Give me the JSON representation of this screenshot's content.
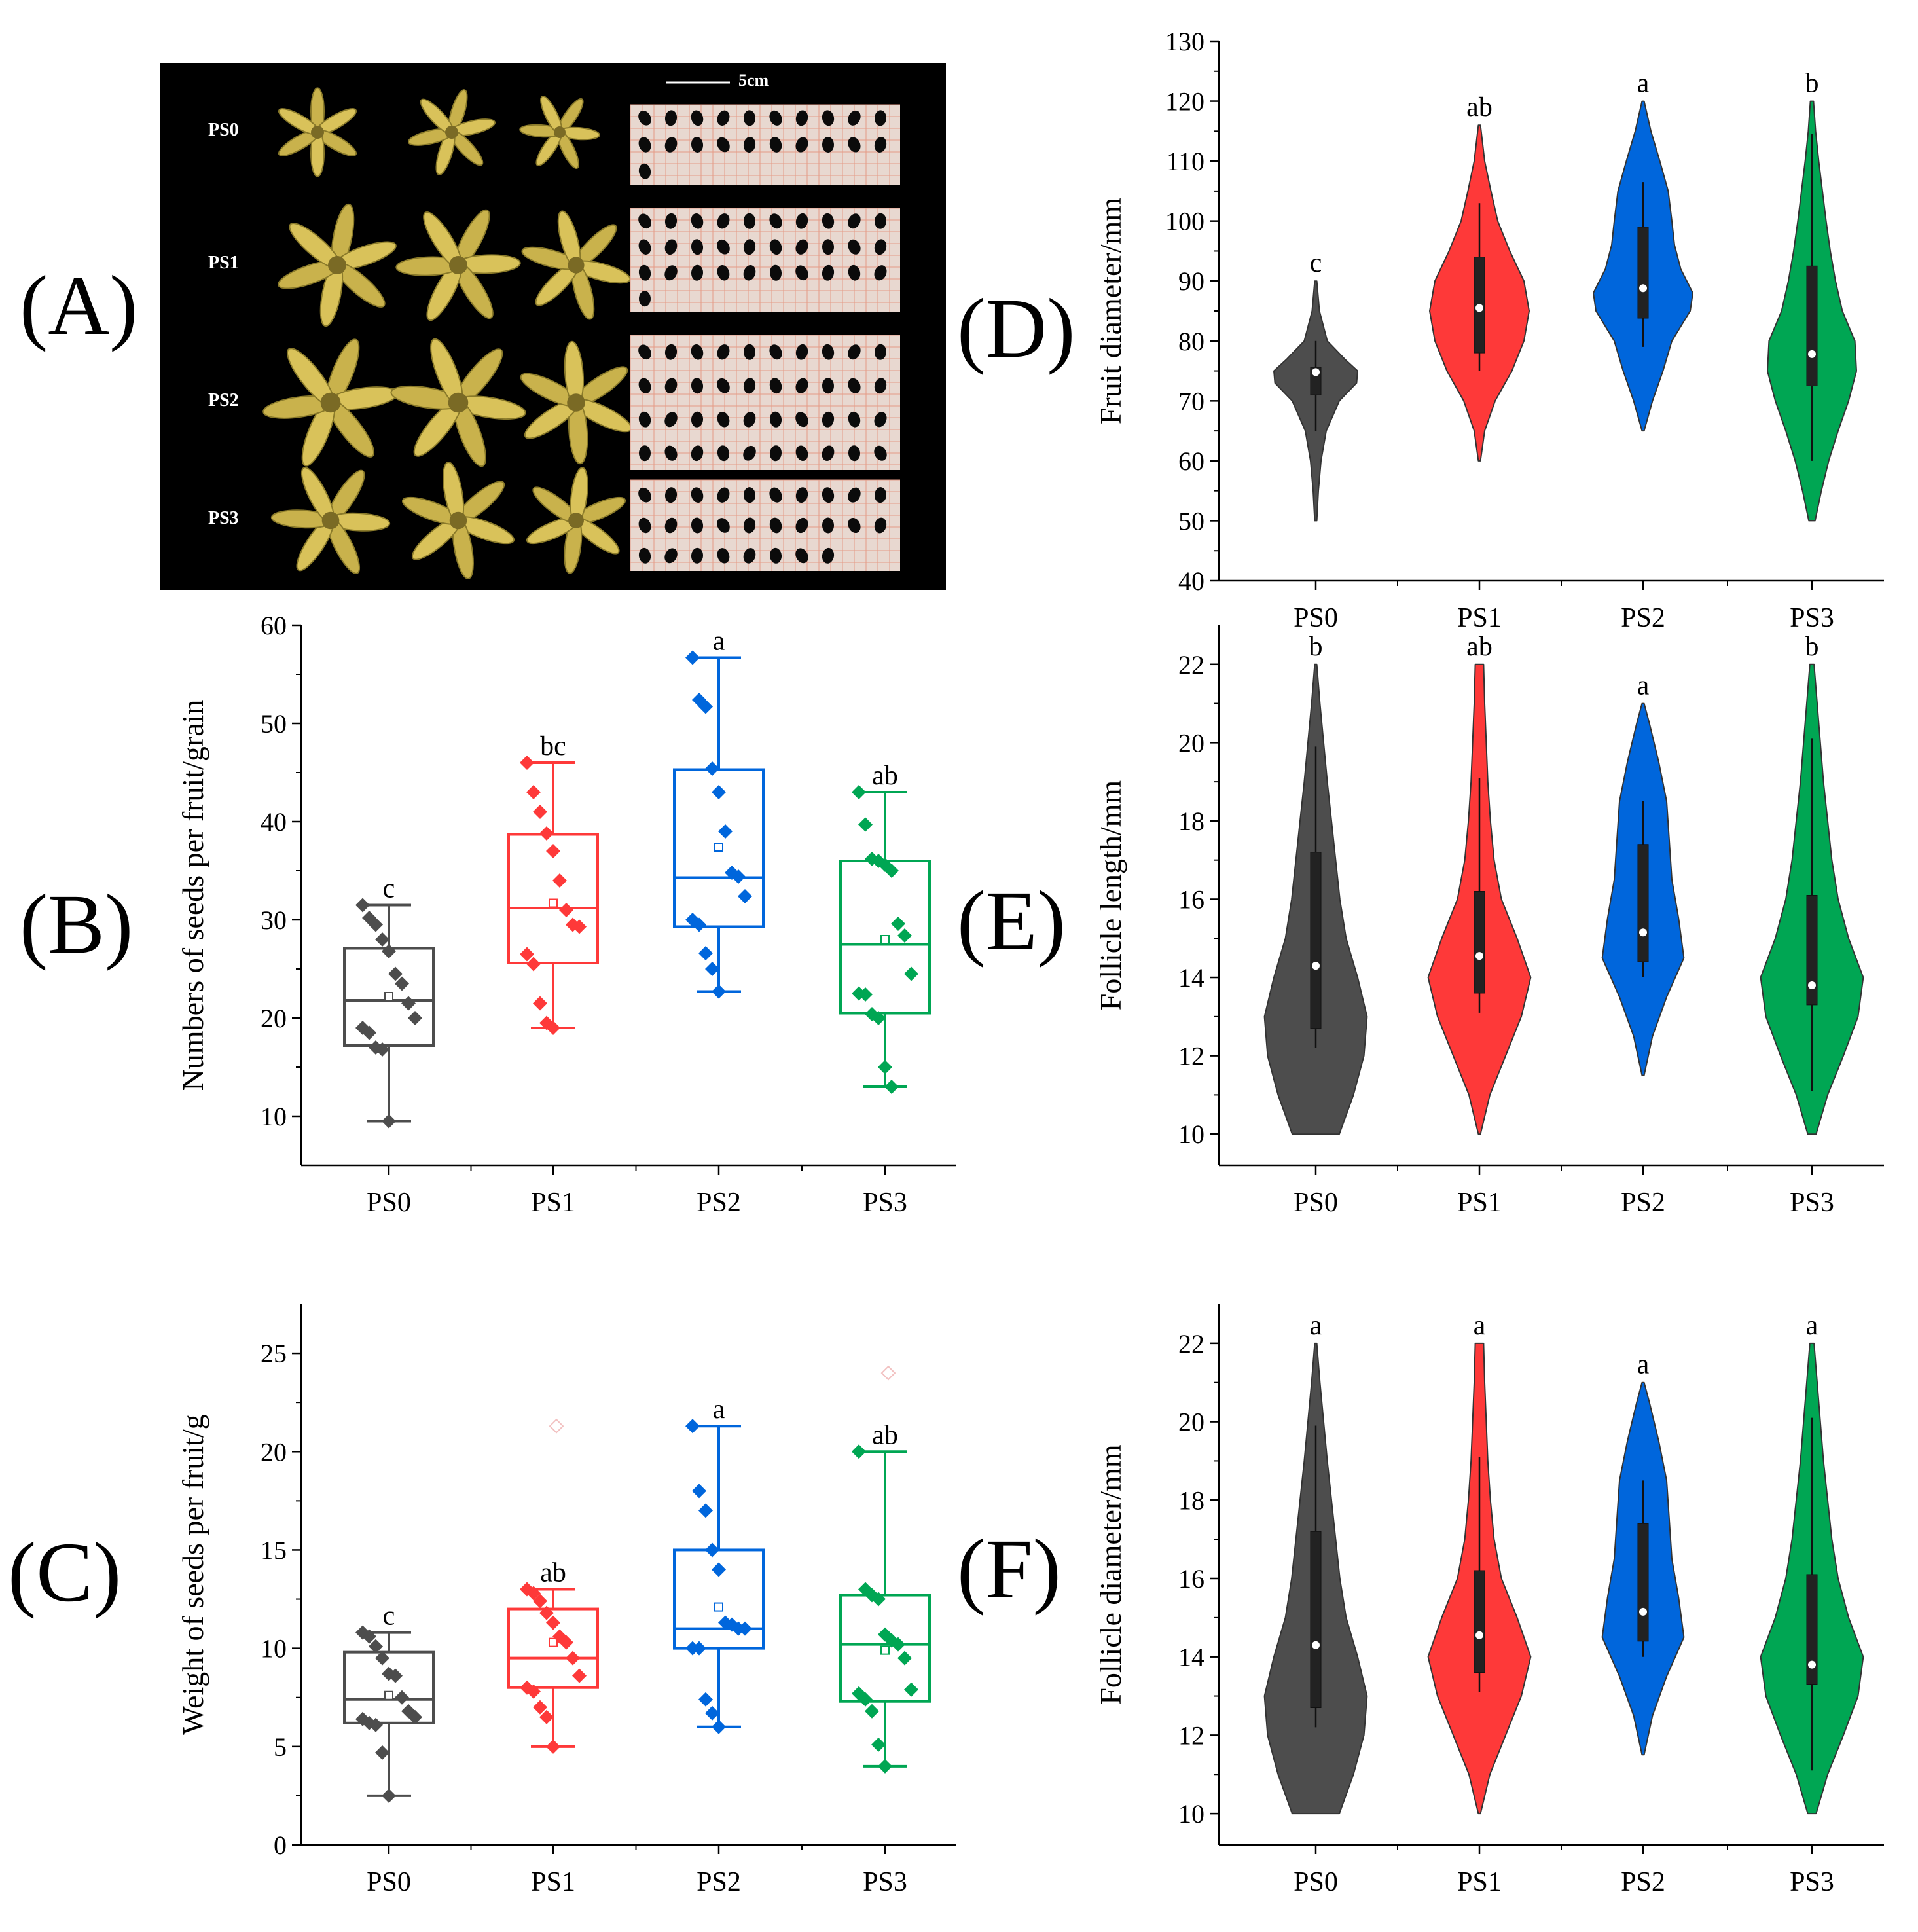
{
  "colors": {
    "PS0": "#4d4d4d",
    "PS1": "#fe3939",
    "PS2": "#0066dc",
    "PS3": "#00a653"
  },
  "panel_labels": {
    "A": "(A)",
    "B": "(B)",
    "C": "(C)",
    "D": "(D)",
    "E": "(E)",
    "F": "(F)"
  },
  "photo": {
    "scale_label": "5cm",
    "row_labels": [
      "PS0",
      "PS1",
      "PS2",
      "PS3"
    ],
    "seed_counts": [
      21,
      31,
      40,
      28
    ]
  },
  "chart_data": [
    {
      "id": "B",
      "type": "box",
      "ylabel": "Numbers of seeds per fruit/grain",
      "categories": [
        "PS0",
        "PS1",
        "PS2",
        "PS3"
      ],
      "ylim": [
        5,
        60
      ],
      "yticks": [
        10,
        20,
        30,
        40,
        50,
        60
      ],
      "boxes": [
        {
          "min": 9.5,
          "q1": 17.2,
          "median": 21.8,
          "q3": 27.1,
          "max": 31.5,
          "mean": 22.2
        },
        {
          "min": 19.0,
          "q1": 25.6,
          "median": 31.2,
          "q3": 38.7,
          "max": 46.0,
          "mean": 31.7
        },
        {
          "min": 22.7,
          "q1": 29.3,
          "median": 34.3,
          "q3": 45.3,
          "max": 56.7,
          "mean": 37.4
        },
        {
          "min": 13.0,
          "q1": 20.5,
          "median": 27.5,
          "q3": 36.0,
          "max": 43.0,
          "mean": 28.0
        }
      ],
      "points": [
        [
          31.5,
          30.2,
          29.5,
          28.0,
          26.8,
          24.5,
          23.5,
          21.5,
          20.0,
          19.0,
          18.5,
          17.0,
          16.8,
          9.5
        ],
        [
          46.0,
          43.0,
          41.0,
          38.8,
          37.0,
          34.0,
          31.0,
          29.5,
          29.3,
          26.5,
          25.5,
          21.5,
          19.5,
          19.0
        ],
        [
          56.7,
          52.4,
          51.7,
          45.4,
          43.0,
          39.0,
          34.8,
          34.4,
          32.4,
          30.0,
          29.5,
          26.6,
          25.0,
          22.7
        ],
        [
          43.0,
          39.7,
          36.2,
          36.0,
          35.6,
          35.0,
          29.6,
          28.4,
          24.5,
          22.5,
          22.4,
          20.4,
          20.0,
          15.0,
          13.0
        ]
      ],
      "letters": [
        "c",
        "bc",
        "a",
        "ab"
      ]
    },
    {
      "id": "C",
      "type": "box",
      "ylabel": "Weight of seeds per fruit/g",
      "categories": [
        "PS0",
        "PS1",
        "PS2",
        "PS3"
      ],
      "ylim": [
        0,
        27.5
      ],
      "yticks": [
        0,
        5,
        10,
        15,
        20,
        25
      ],
      "boxes": [
        {
          "min": 2.5,
          "q1": 6.2,
          "median": 7.4,
          "q3": 9.8,
          "max": 10.8,
          "mean": 7.6
        },
        {
          "min": 5.0,
          "q1": 8.0,
          "median": 9.5,
          "q3": 12.0,
          "max": 13.0,
          "mean": 10.3
        },
        {
          "min": 6.0,
          "q1": 10.0,
          "median": 11.0,
          "q3": 15.0,
          "max": 21.3,
          "mean": 12.1
        },
        {
          "min": 4.0,
          "q1": 7.3,
          "median": 10.2,
          "q3": 12.7,
          "max": 20.0,
          "mean": 9.9
        }
      ],
      "points": [
        [
          10.8,
          10.6,
          10.1,
          9.5,
          8.7,
          8.6,
          7.5,
          6.8,
          6.5,
          6.4,
          6.2,
          6.1,
          4.7,
          2.5
        ],
        [
          13.0,
          12.8,
          12.4,
          11.8,
          11.3,
          10.6,
          10.3,
          9.5,
          8.6,
          8.0,
          7.8,
          7.0,
          6.5,
          5.0
        ],
        [
          21.3,
          18.0,
          17.0,
          15.0,
          14.0,
          11.3,
          11.2,
          11.0,
          11.0,
          10.0,
          10.0,
          7.4,
          6.7,
          6.0
        ],
        [
          20.0,
          13.0,
          12.7,
          12.5,
          10.7,
          10.4,
          10.2,
          9.5,
          7.9,
          7.7,
          7.4,
          6.8,
          5.1,
          4.0
        ]
      ],
      "outliers": [
        null,
        21.3,
        null,
        24.0
      ],
      "letters": [
        "c",
        "ab",
        "a",
        "ab"
      ]
    },
    {
      "id": "D",
      "type": "violin",
      "ylabel": "Fruit diameter/mm",
      "categories": [
        "PS0",
        "PS1",
        "PS2",
        "PS3"
      ],
      "ylim": [
        40,
        130
      ],
      "yticks": [
        40,
        50,
        60,
        70,
        80,
        90,
        100,
        110,
        120,
        130
      ],
      "violins": [
        {
          "min": 50,
          "max": 90,
          "profile": [
            [
              50,
              0.02
            ],
            [
              55,
              0.05
            ],
            [
              60,
              0.1
            ],
            [
              65,
              0.2
            ],
            [
              70,
              0.45
            ],
            [
              73,
              0.78
            ],
            [
              75,
              0.8
            ],
            [
              77,
              0.55
            ],
            [
              80,
              0.22
            ],
            [
              85,
              0.07
            ],
            [
              90,
              0.02
            ]
          ],
          "q1": 71,
          "median": 74.8,
          "q3": 75.6,
          "wlo": 65,
          "whi": 80
        },
        {
          "min": 60,
          "max": 116,
          "profile": [
            [
              60,
              0.02
            ],
            [
              65,
              0.1
            ],
            [
              70,
              0.3
            ],
            [
              75,
              0.62
            ],
            [
              80,
              0.85
            ],
            [
              85,
              0.95
            ],
            [
              90,
              0.85
            ],
            [
              95,
              0.58
            ],
            [
              100,
              0.35
            ],
            [
              105,
              0.22
            ],
            [
              110,
              0.1
            ],
            [
              116,
              0.02
            ]
          ],
          "q1": 78,
          "median": 85.5,
          "q3": 94,
          "wlo": 75,
          "whi": 103
        },
        {
          "min": 65,
          "max": 120,
          "profile": [
            [
              65,
              0.02
            ],
            [
              70,
              0.18
            ],
            [
              75,
              0.38
            ],
            [
              80,
              0.55
            ],
            [
              85,
              0.9
            ],
            [
              88,
              0.95
            ],
            [
              92,
              0.72
            ],
            [
              96,
              0.6
            ],
            [
              100,
              0.55
            ],
            [
              105,
              0.48
            ],
            [
              110,
              0.32
            ],
            [
              115,
              0.15
            ],
            [
              120,
              0.02
            ]
          ],
          "q1": 83.8,
          "median": 88.8,
          "q3": 99,
          "wlo": 79,
          "whi": 106.5
        },
        {
          "min": 50,
          "max": 120,
          "profile": [
            [
              50,
              0.06
            ],
            [
              55,
              0.18
            ],
            [
              60,
              0.32
            ],
            [
              65,
              0.5
            ],
            [
              70,
              0.7
            ],
            [
              75,
              0.85
            ],
            [
              80,
              0.82
            ],
            [
              85,
              0.58
            ],
            [
              90,
              0.45
            ],
            [
              95,
              0.35
            ],
            [
              100,
              0.27
            ],
            [
              105,
              0.2
            ],
            [
              110,
              0.13
            ],
            [
              115,
              0.07
            ],
            [
              120,
              0.03
            ]
          ],
          "q1": 72.5,
          "median": 77.8,
          "q3": 92.5,
          "wlo": 60,
          "whi": 114.5
        }
      ],
      "letters": [
        "c",
        "ab",
        "a",
        "b"
      ]
    },
    {
      "id": "E",
      "type": "violin",
      "ylabel": "Follicle length/mm",
      "categories": [
        "PS0",
        "PS1",
        "PS2",
        "PS3"
      ],
      "ylim": [
        9.2,
        23
      ],
      "yticks": [
        10,
        12,
        14,
        16,
        18,
        20,
        22
      ],
      "violins": [
        {
          "min": 10,
          "max": 22,
          "profile": [
            [
              10,
              0.45
            ],
            [
              11,
              0.72
            ],
            [
              12,
              0.92
            ],
            [
              13,
              0.98
            ],
            [
              14,
              0.8
            ],
            [
              15,
              0.58
            ],
            [
              16,
              0.46
            ],
            [
              17,
              0.38
            ],
            [
              18,
              0.3
            ],
            [
              19,
              0.22
            ],
            [
              20,
              0.15
            ],
            [
              21,
              0.08
            ],
            [
              22,
              0.02
            ]
          ],
          "q1": 12.7,
          "median": 14.3,
          "q3": 17.2,
          "wlo": 12.2,
          "whi": 19.9
        },
        {
          "min": 10,
          "max": 22,
          "profile": [
            [
              10,
              0.02
            ],
            [
              11,
              0.2
            ],
            [
              12,
              0.5
            ],
            [
              13,
              0.8
            ],
            [
              14,
              0.98
            ],
            [
              15,
              0.72
            ],
            [
              16,
              0.42
            ],
            [
              17,
              0.28
            ],
            [
              18,
              0.21
            ],
            [
              19,
              0.16
            ],
            [
              20,
              0.13
            ],
            [
              21,
              0.1
            ],
            [
              22,
              0.08
            ]
          ],
          "q1": 13.6,
          "median": 14.55,
          "q3": 16.2,
          "wlo": 13.1,
          "whi": 19.1
        },
        {
          "min": 11.5,
          "max": 21,
          "profile": [
            [
              11.5,
              0.02
            ],
            [
              12.5,
              0.18
            ],
            [
              13.5,
              0.45
            ],
            [
              14.5,
              0.78
            ],
            [
              15.5,
              0.68
            ],
            [
              16.5,
              0.55
            ],
            [
              17.5,
              0.5
            ],
            [
              18.5,
              0.45
            ],
            [
              19.5,
              0.3
            ],
            [
              20.5,
              0.12
            ],
            [
              21,
              0.02
            ]
          ],
          "q1": 14.4,
          "median": 15.15,
          "q3": 17.4,
          "wlo": 14.0,
          "whi": 18.5
        },
        {
          "min": 10,
          "max": 22,
          "profile": [
            [
              10,
              0.08
            ],
            [
              11,
              0.3
            ],
            [
              12,
              0.6
            ],
            [
              13,
              0.88
            ],
            [
              14,
              0.98
            ],
            [
              15,
              0.7
            ],
            [
              16,
              0.5
            ],
            [
              17,
              0.38
            ],
            [
              18,
              0.3
            ],
            [
              19,
              0.22
            ],
            [
              20,
              0.16
            ],
            [
              21,
              0.1
            ],
            [
              22,
              0.04
            ]
          ],
          "q1": 13.3,
          "median": 13.8,
          "q3": 16.1,
          "wlo": 11.1,
          "whi": 20.1
        }
      ],
      "letters": [
        "b",
        "ab",
        "a",
        "b"
      ]
    },
    {
      "id": "F",
      "type": "violin",
      "ylabel": "Follicle diameter/mm",
      "categories": [
        "PS0",
        "PS1",
        "PS2",
        "PS3"
      ],
      "ylim": [
        9.2,
        23
      ],
      "yticks": [
        10,
        12,
        14,
        16,
        18,
        20,
        22
      ],
      "violins": [
        {
          "min": 10,
          "max": 22,
          "profile": [
            [
              10,
              0.45
            ],
            [
              11,
              0.72
            ],
            [
              12,
              0.92
            ],
            [
              13,
              0.98
            ],
            [
              14,
              0.8
            ],
            [
              15,
              0.58
            ],
            [
              16,
              0.46
            ],
            [
              17,
              0.38
            ],
            [
              18,
              0.3
            ],
            [
              19,
              0.22
            ],
            [
              20,
              0.15
            ],
            [
              21,
              0.08
            ],
            [
              22,
              0.02
            ]
          ],
          "q1": 12.7,
          "median": 14.3,
          "q3": 17.2,
          "wlo": 12.2,
          "whi": 19.9
        },
        {
          "min": 10,
          "max": 22,
          "profile": [
            [
              10,
              0.02
            ],
            [
              11,
              0.2
            ],
            [
              12,
              0.5
            ],
            [
              13,
              0.8
            ],
            [
              14,
              0.98
            ],
            [
              15,
              0.72
            ],
            [
              16,
              0.42
            ],
            [
              17,
              0.28
            ],
            [
              18,
              0.21
            ],
            [
              19,
              0.16
            ],
            [
              20,
              0.13
            ],
            [
              21,
              0.1
            ],
            [
              22,
              0.08
            ]
          ],
          "q1": 13.6,
          "median": 14.55,
          "q3": 16.2,
          "wlo": 13.1,
          "whi": 19.1
        },
        {
          "min": 11.5,
          "max": 21,
          "profile": [
            [
              11.5,
              0.02
            ],
            [
              12.5,
              0.18
            ],
            [
              13.5,
              0.45
            ],
            [
              14.5,
              0.78
            ],
            [
              15.5,
              0.68
            ],
            [
              16.5,
              0.55
            ],
            [
              17.5,
              0.5
            ],
            [
              18.5,
              0.45
            ],
            [
              19.5,
              0.3
            ],
            [
              20.5,
              0.12
            ],
            [
              21,
              0.02
            ]
          ],
          "q1": 14.4,
          "median": 15.15,
          "q3": 17.4,
          "wlo": 14.0,
          "whi": 18.5
        },
        {
          "min": 10,
          "max": 22,
          "profile": [
            [
              10,
              0.08
            ],
            [
              11,
              0.3
            ],
            [
              12,
              0.6
            ],
            [
              13,
              0.88
            ],
            [
              14,
              0.98
            ],
            [
              15,
              0.7
            ],
            [
              16,
              0.5
            ],
            [
              17,
              0.38
            ],
            [
              18,
              0.3
            ],
            [
              19,
              0.22
            ],
            [
              20,
              0.16
            ],
            [
              21,
              0.1
            ],
            [
              22,
              0.04
            ]
          ],
          "q1": 13.3,
          "median": 13.8,
          "q3": 16.1,
          "wlo": 11.1,
          "whi": 20.1
        }
      ],
      "letters": [
        "a",
        "a",
        "a",
        "a"
      ]
    }
  ]
}
